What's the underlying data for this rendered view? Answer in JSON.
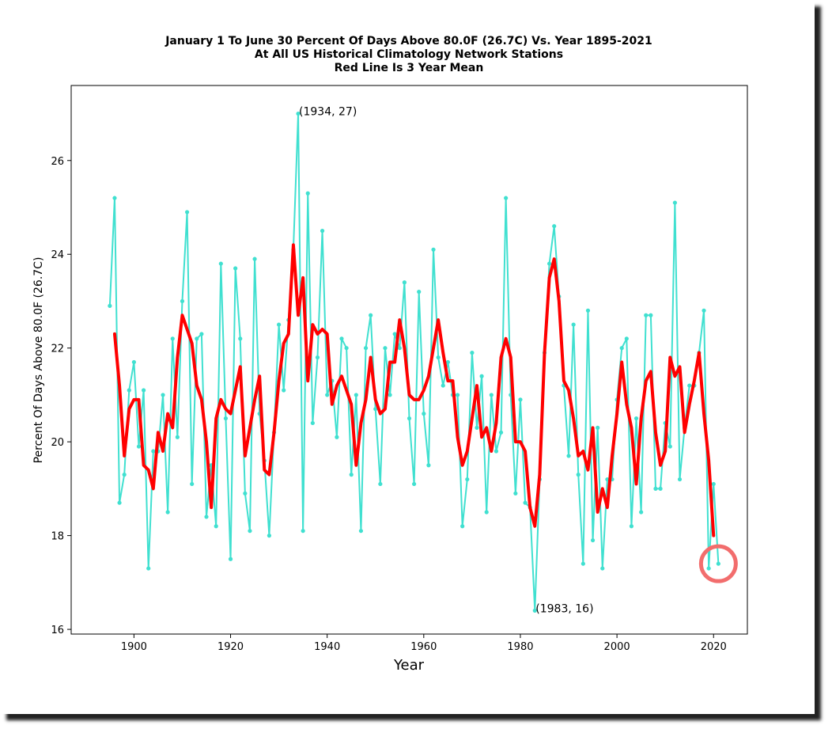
{
  "title_lines": [
    "January 1 To June 30 Percent Of Days Above 80.0F (26.7C) Vs. Year 1895-2021",
    "At All US Historical Climatology Network Stations",
    "Red Line Is 3 Year Mean"
  ],
  "colors": {
    "series": "#40e0d0",
    "mean": "#ff0000",
    "highlight": "#f26d6d"
  },
  "chart_data": {
    "type": "line",
    "title": "January 1 To June 30 Percent Of Days Above 80.0F (26.7C) Vs. Year 1895-2021",
    "subtitle": "At All US Historical Climatology Network Stations / Red Line Is 3 Year Mean",
    "xlabel": "Year",
    "ylabel": "Percent Of Days Above 80.0F (26.7C)",
    "xlim": [
      1887,
      2027
    ],
    "ylim": [
      15.9,
      27.6
    ],
    "xticks": [
      1900,
      1920,
      1940,
      1960,
      1980,
      2000,
      2020
    ],
    "yticks": [
      16,
      18,
      20,
      22,
      24,
      26
    ],
    "grid": false,
    "annotations": [
      {
        "text": "(1934, 27)",
        "x": 1934,
        "y": 27
      },
      {
        "text": "(1983, 16)",
        "x": 1983,
        "y": 16.4
      }
    ],
    "highlight_circle": {
      "x": 2021,
      "y": 17.4
    },
    "series": [
      {
        "color": "#40e0d0",
        "x": [
          1895,
          1896,
          1897,
          1898,
          1899,
          1900,
          1901,
          1902,
          1903,
          1904,
          1905,
          1906,
          1907,
          1908,
          1909,
          1910,
          1911,
          1912,
          1913,
          1914,
          1915,
          1916,
          1917,
          1918,
          1919,
          1920,
          1921,
          1922,
          1923,
          1924,
          1925,
          1926,
          1927,
          1928,
          1929,
          1930,
          1931,
          1932,
          1933,
          1934,
          1935,
          1936,
          1937,
          1938,
          1939,
          1940,
          1941,
          1942,
          1943,
          1944,
          1945,
          1946,
          1947,
          1948,
          1949,
          1950,
          1951,
          1952,
          1953,
          1954,
          1955,
          1956,
          1957,
          1958,
          1959,
          1960,
          1961,
          1962,
          1963,
          1964,
          1965,
          1966,
          1967,
          1968,
          1969,
          1970,
          1971,
          1972,
          1973,
          1974,
          1975,
          1976,
          1977,
          1978,
          1979,
          1980,
          1981,
          1982,
          1983,
          1984,
          1985,
          1986,
          1987,
          1988,
          1989,
          1990,
          1991,
          1992,
          1993,
          1994,
          1995,
          1996,
          1997,
          1998,
          1999,
          2000,
          2001,
          2002,
          2003,
          2004,
          2005,
          2006,
          2007,
          2008,
          2009,
          2010,
          2011,
          2012,
          2013,
          2014,
          2015,
          2016,
          2017,
          2018,
          2019,
          2020,
          2021
        ],
        "values": [
          22.9,
          25.2,
          18.7,
          19.3,
          21.1,
          21.7,
          19.9,
          21.1,
          17.3,
          19.8,
          19.8,
          21.0,
          18.5,
          22.2,
          20.1,
          23.0,
          24.9,
          19.1,
          22.2,
          22.3,
          18.4,
          19.5,
          18.2,
          23.8,
          20.5,
          17.5,
          23.7,
          22.2,
          18.9,
          18.1,
          23.9,
          20.6,
          19.6,
          18.0,
          20.2,
          22.5,
          21.1,
          22.6,
          24.1,
          27.0,
          18.1,
          25.3,
          20.4,
          21.8,
          24.5,
          21.0,
          21.3,
          20.1,
          22.2,
          22.0,
          19.3,
          21.0,
          18.1,
          22.0,
          22.7,
          20.7,
          19.1,
          22.0,
          21.0,
          22.3,
          22.0,
          23.4,
          20.5,
          19.1,
          23.2,
          20.6,
          19.5,
          24.1,
          21.8,
          21.2,
          21.7,
          21.0,
          21.0,
          18.2,
          19.2,
          21.9,
          20.3,
          21.4,
          18.5,
          21.0,
          19.8,
          20.2,
          25.2,
          21.0,
          18.9,
          20.9,
          18.7,
          18.6,
          16.4,
          19.2,
          21.9,
          23.8,
          24.6,
          23.1,
          21.2,
          19.7,
          22.5,
          19.3,
          17.4,
          22.8,
          17.9,
          20.3,
          17.3,
          19.2,
          19.2,
          20.9,
          22.0,
          22.2,
          18.2,
          20.5,
          18.5,
          22.7,
          22.7,
          19.0,
          19.0,
          20.4,
          19.9,
          25.1,
          19.2,
          20.3,
          21.2,
          21.2,
          21.9,
          22.8,
          17.3,
          19.1,
          17.4
        ]
      },
      {
        "color": "#ff0000",
        "x": [
          1896,
          1897,
          1898,
          1899,
          1900,
          1901,
          1902,
          1903,
          1904,
          1905,
          1906,
          1907,
          1908,
          1909,
          1910,
          1911,
          1912,
          1913,
          1914,
          1915,
          1916,
          1917,
          1918,
          1919,
          1920,
          1921,
          1922,
          1923,
          1924,
          1925,
          1926,
          1927,
          1928,
          1929,
          1930,
          1931,
          1932,
          1933,
          1934,
          1935,
          1936,
          1937,
          1938,
          1939,
          1940,
          1941,
          1942,
          1943,
          1944,
          1945,
          1946,
          1947,
          1948,
          1949,
          1950,
          1951,
          1952,
          1953,
          1954,
          1955,
          1956,
          1957,
          1958,
          1959,
          1960,
          1961,
          1962,
          1963,
          1964,
          1965,
          1966,
          1967,
          1968,
          1969,
          1970,
          1971,
          1972,
          1973,
          1974,
          1975,
          1976,
          1977,
          1978,
          1979,
          1980,
          1981,
          1982,
          1983,
          1984,
          1985,
          1986,
          1987,
          1988,
          1989,
          1990,
          1991,
          1992,
          1993,
          1994,
          1995,
          1996,
          1997,
          1998,
          1999,
          2000,
          2001,
          2002,
          2003,
          2004,
          2005,
          2006,
          2007,
          2008,
          2009,
          2010,
          2011,
          2012,
          2013,
          2014,
          2015,
          2016,
          2017,
          2018,
          2019,
          2020
        ],
        "values": [
          22.3,
          21.2,
          19.7,
          20.7,
          20.9,
          20.9,
          19.5,
          19.4,
          19.0,
          20.2,
          19.8,
          20.6,
          20.3,
          21.8,
          22.7,
          22.4,
          22.1,
          21.2,
          20.9,
          20.0,
          18.6,
          20.5,
          20.9,
          20.7,
          20.6,
          21.1,
          21.6,
          19.7,
          20.3,
          20.9,
          21.4,
          19.4,
          19.3,
          20.2,
          21.3,
          22.1,
          22.3,
          24.2,
          22.7,
          23.5,
          21.3,
          22.5,
          22.3,
          22.4,
          22.3,
          20.8,
          21.2,
          21.4,
          21.1,
          20.8,
          19.5,
          20.4,
          20.9,
          21.8,
          20.9,
          20.6,
          20.7,
          21.7,
          21.7,
          22.6,
          22.0,
          21.0,
          20.9,
          20.9,
          21.1,
          21.4,
          22.0,
          22.6,
          21.9,
          21.3,
          21.3,
          20.1,
          19.5,
          19.8,
          20.5,
          21.2,
          20.1,
          20.3,
          19.8,
          20.4,
          21.8,
          22.2,
          21.8,
          20.0,
          20.0,
          19.8,
          18.6,
          18.2,
          19.3,
          21.9,
          23.5,
          23.9,
          23.0,
          21.3,
          21.1,
          20.5,
          19.7,
          19.8,
          19.4,
          20.3,
          18.5,
          19.0,
          18.6,
          19.7,
          20.6,
          21.7,
          20.8,
          20.3,
          19.1,
          20.5,
          21.3,
          21.5,
          20.2,
          19.5,
          19.8,
          21.8,
          21.4,
          21.6,
          20.2,
          20.8,
          21.3,
          21.9,
          20.6,
          19.6,
          18.0
        ]
      }
    ]
  }
}
